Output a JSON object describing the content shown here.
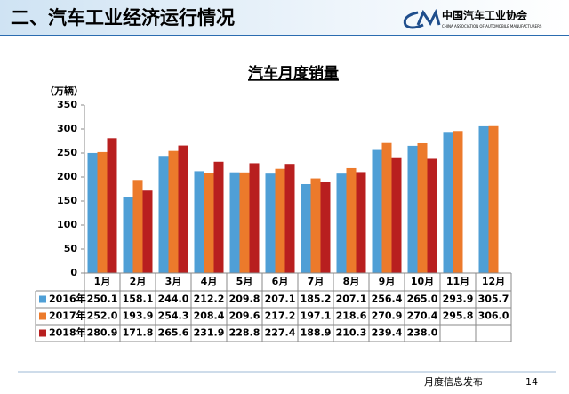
{
  "header": {
    "title": "二、汽车工业经济运行情况",
    "logo": "中国汽车工业协会",
    "logo_sub": "CHINA ASSOCIATION OF AUTOMOBILE MANUFACTURERS"
  },
  "chart_data": {
    "type": "bar",
    "title": "汽车月度销量",
    "y_label": "（万辆）",
    "categories": [
      "1月",
      "2月",
      "3月",
      "4月",
      "5月",
      "6月",
      "7月",
      "8月",
      "9月",
      "10月",
      "11月",
      "12月"
    ],
    "series": [
      {
        "name": "2016年",
        "color": "#4f9fd6",
        "values": [
          250.1,
          158.1,
          244.0,
          212.2,
          209.8,
          207.1,
          185.2,
          207.1,
          256.4,
          265.0,
          293.9,
          305.7
        ],
        "value_labels": [
          "250.1",
          "158.1",
          "244.0",
          "212.2",
          "209.8",
          "207.1",
          "185.2",
          "207.1",
          "256.4",
          "265.0",
          "293.9",
          "305.7"
        ]
      },
      {
        "name": "2017年",
        "color": "#ec7a2b",
        "values": [
          252.0,
          193.9,
          254.3,
          208.4,
          209.6,
          217.2,
          197.1,
          218.6,
          270.9,
          270.4,
          295.8,
          306.0
        ],
        "value_labels": [
          "252.0",
          "193.9",
          "254.3",
          "208.4",
          "209.6",
          "217.2",
          "197.1",
          "218.6",
          "270.9",
          "270.4",
          "295.8",
          "306.0"
        ]
      },
      {
        "name": "2018年",
        "color": "#b81f1f",
        "values": [
          280.9,
          171.8,
          265.6,
          231.9,
          228.8,
          227.4,
          188.9,
          210.3,
          239.4,
          238.0,
          null,
          null
        ],
        "value_labels": [
          "280.9",
          "171.8",
          "265.6",
          "231.9",
          "228.8",
          "227.4",
          "188.9",
          "210.3",
          "239.4",
          "238.0",
          null,
          null
        ]
      }
    ],
    "ylim": [
      0,
      350
    ],
    "yticks": [
      0,
      50,
      100,
      150,
      200,
      250,
      300,
      350
    ],
    "grid": false
  },
  "footer": {
    "text": "月度信息发布",
    "page": "14"
  }
}
